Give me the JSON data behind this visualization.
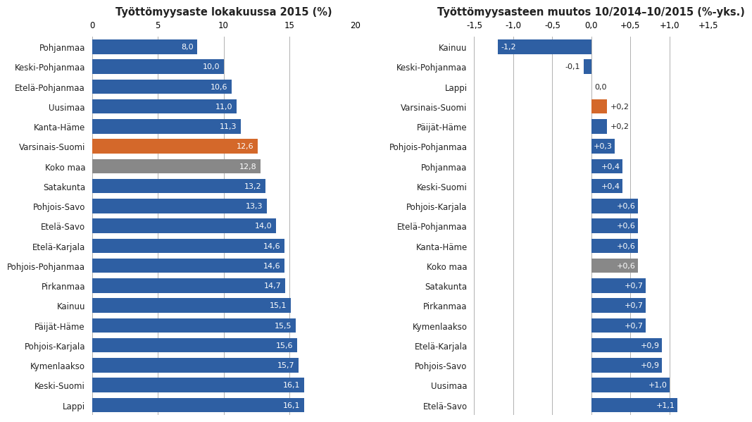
{
  "left_categories": [
    "Pohjanmaa",
    "Keski-Pohjanmaa",
    "Etelä-Pohjanmaa",
    "Uusimaa",
    "Kanta-Häme",
    "Varsinais-Suomi",
    "Koko maa",
    "Satakunta",
    "Pohjois-Savo",
    "Etelä-Savo",
    "Etelä-Karjala",
    "Pohjois-Pohjanmaa",
    "Pirkanmaa",
    "Kainuu",
    "Päijät-Häme",
    "Pohjois-Karjala",
    "Kymenlaakso",
    "Keski-Suomi",
    "Lappi"
  ],
  "left_values": [
    8.0,
    10.0,
    10.6,
    11.0,
    11.3,
    12.6,
    12.8,
    13.2,
    13.3,
    14.0,
    14.6,
    14.6,
    14.7,
    15.1,
    15.5,
    15.6,
    15.7,
    16.1,
    16.1
  ],
  "left_colors": [
    "#2e5fa3",
    "#2e5fa3",
    "#2e5fa3",
    "#2e5fa3",
    "#2e5fa3",
    "#d4682a",
    "#888888",
    "#2e5fa3",
    "#2e5fa3",
    "#2e5fa3",
    "#2e5fa3",
    "#2e5fa3",
    "#2e5fa3",
    "#2e5fa3",
    "#2e5fa3",
    "#2e5fa3",
    "#2e5fa3",
    "#2e5fa3",
    "#2e5fa3"
  ],
  "left_title": "Työttömyysaste lokakuussa 2015 (%)",
  "left_xlim": [
    0,
    20
  ],
  "left_xticks": [
    0,
    5,
    10,
    15,
    20
  ],
  "right_categories": [
    "Kainuu",
    "Keski-Pohjanmaa",
    "Lappi",
    "Varsinais-Suomi",
    "Päijät-Häme",
    "Pohjois-Pohjanmaa",
    "Pohjanmaa",
    "Keski-Suomi",
    "Pohjois-Karjala",
    "Etelä-Pohjanmaa",
    "Kanta-Häme",
    "Koko maa",
    "Satakunta",
    "Pirkanmaa",
    "Kymenlaakso",
    "Etelä-Karjala",
    "Pohjois-Savo",
    "Uusimaa",
    "Etelä-Savo"
  ],
  "right_values": [
    -1.2,
    -0.1,
    0.0,
    0.2,
    0.2,
    0.3,
    0.4,
    0.4,
    0.6,
    0.6,
    0.6,
    0.6,
    0.7,
    0.7,
    0.7,
    0.9,
    0.9,
    1.0,
    1.1
  ],
  "right_colors": [
    "#2e5fa3",
    "#2e5fa3",
    "#2e5fa3",
    "#d4682a",
    "#2e5fa3",
    "#2e5fa3",
    "#2e5fa3",
    "#2e5fa3",
    "#2e5fa3",
    "#2e5fa3",
    "#2e5fa3",
    "#888888",
    "#2e5fa3",
    "#2e5fa3",
    "#2e5fa3",
    "#2e5fa3",
    "#2e5fa3",
    "#2e5fa3",
    "#2e5fa3"
  ],
  "right_title": "Työttömyysasteen muutos 10/2014–10/2015 (%-yks.)",
  "right_xlim": [
    -1.5,
    1.5
  ],
  "right_xticks": [
    -1.5,
    -1.0,
    -0.5,
    0.0,
    0.5,
    1.0,
    1.5
  ],
  "right_xticklabels": [
    "-1,5",
    "-1,0",
    "-0,5",
    "0,0",
    "+0,5",
    "+1,0",
    "+1,5"
  ],
  "bg_color": "#ffffff",
  "bar_height": 0.72,
  "fontsize_title": 10.5,
  "fontsize_labels": 8.5,
  "fontsize_values": 8,
  "text_color": "#222222",
  "grid_color": "#b0b0b0"
}
